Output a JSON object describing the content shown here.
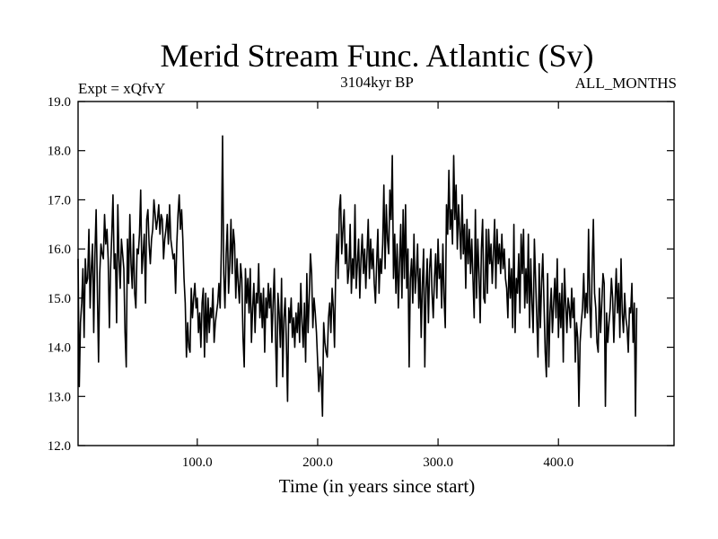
{
  "chart_data": {
    "type": "line",
    "title": "Merid Stream Func. Atlantic (Sv)",
    "subtitle_left": "Expt = xQfvY",
    "subtitle_center": "3104kyr BP",
    "subtitle_right": "ALL_MONTHS",
    "xlabel": "Time (in years since start)",
    "ylabel": "",
    "xlim": [
      1,
      496
    ],
    "ylim": [
      12.0,
      19.0
    ],
    "x_ticks": [
      100,
      200,
      300,
      400
    ],
    "x_tick_labels": [
      "100.0",
      "200.0",
      "300.0",
      "400.0"
    ],
    "y_ticks": [
      12,
      13,
      14,
      15,
      16,
      17,
      18,
      19
    ],
    "y_tick_labels": [
      "12.0",
      "13.0",
      "14.0",
      "15.0",
      "16.0",
      "17.0",
      "18.0",
      "19.0"
    ],
    "grid": false,
    "legend": "none",
    "series": [
      {
        "name": "Merid Stream Func. Atlantic",
        "color": "#000000",
        "start_x": 1,
        "step": 1,
        "values": [
          15.8,
          13.2,
          14.5,
          14.9,
          15.6,
          14.2,
          15.8,
          15.3,
          15.4,
          16.4,
          14.8,
          15.6,
          16.1,
          14.3,
          15.9,
          16.8,
          15.2,
          13.7,
          15.5,
          16.1,
          15.9,
          15.8,
          16.7,
          16.1,
          16.4,
          15.8,
          14.4,
          15.6,
          16.3,
          17.1,
          15.6,
          15.9,
          14.5,
          16.9,
          15.8,
          15.2,
          16.2,
          15.9,
          15.6,
          14.3,
          13.6,
          16.2,
          15.3,
          16.7,
          15.7,
          15.2,
          16.3,
          15.1,
          14.8,
          16.0,
          15.9,
          16.3,
          17.2,
          15.5,
          15.9,
          16.3,
          14.9,
          16.6,
          16.8,
          16.1,
          15.7,
          16.2,
          16.4,
          17.0,
          16.7,
          16.4,
          16.6,
          16.9,
          16.3,
          16.7,
          16.6,
          15.8,
          16.2,
          16.4,
          16.7,
          16.1,
          16.9,
          16.2,
          16.0,
          15.8,
          15.9,
          15.1,
          16.1,
          16.7,
          17.1,
          16.4,
          16.8,
          16.2,
          15.4,
          14.9,
          13.8,
          14.5,
          14.0,
          13.9,
          15.2,
          14.6,
          15.0,
          15.3,
          14.8,
          15.0,
          14.3,
          14.7,
          14.0,
          14.9,
          15.2,
          13.8,
          15.1,
          14.1,
          15.0,
          14.3,
          14.8,
          14.6,
          15.2,
          14.1,
          14.5,
          14.7,
          14.9,
          15.3,
          14.8,
          16.0,
          18.3,
          15.5,
          14.8,
          15.9,
          16.5,
          15.1,
          15.7,
          16.6,
          15.5,
          16.4,
          16.1,
          15.0,
          15.8,
          15.3,
          14.9,
          15.7,
          15.4,
          14.2,
          13.6,
          15.6,
          14.9,
          15.4,
          14.7,
          15.6,
          14.1,
          14.8,
          15.3,
          14.3,
          15.1,
          14.9,
          15.7,
          14.6,
          15.1,
          14.4,
          15.2,
          13.9,
          15.0,
          14.6,
          15.3,
          14.8,
          15.2,
          14.1,
          14.9,
          15.6,
          14.2,
          13.2,
          15.1,
          14.7,
          14.0,
          15.4,
          13.4,
          14.6,
          15.0,
          14.1,
          12.9,
          14.8,
          14.5,
          15.0,
          14.2,
          14.6,
          14.0,
          14.7,
          14.3,
          14.9,
          14.1,
          15.3,
          14.5,
          14.0,
          14.9,
          13.7,
          15.5,
          14.3,
          15.0,
          15.9,
          15.5,
          14.4,
          15.0,
          14.7,
          14.3,
          13.7,
          13.1,
          13.6,
          13.4,
          12.6,
          14.5,
          14.1,
          13.9,
          13.8,
          14.6,
          14.9,
          14.3,
          15.2,
          14.8,
          14.0,
          15.6,
          16.3,
          15.4,
          16.8,
          17.1,
          15.9,
          16.4,
          16.8,
          15.7,
          16.1,
          15.3,
          15.6,
          16.5,
          15.1,
          15.8,
          15.4,
          16.9,
          15.2,
          15.7,
          16.2,
          15.0,
          15.8,
          16.3,
          15.5,
          16.0,
          15.2,
          15.9,
          16.6,
          15.4,
          16.2,
          15.6,
          16.0,
          15.3,
          14.9,
          15.7,
          16.4,
          15.1,
          15.8,
          15.5,
          16.1,
          17.3,
          15.6,
          16.9,
          16.2,
          15.9,
          17.2,
          16.6,
          17.9,
          15.4,
          16.3,
          15.1,
          16.1,
          14.8,
          15.7,
          16.5,
          15.0,
          16.8,
          15.4,
          16.9,
          15.2,
          16.0,
          13.6,
          15.4,
          15.8,
          14.9,
          16.3,
          15.1,
          15.5,
          16.1,
          14.8,
          15.6,
          14.2,
          15.3,
          16.0,
          13.6,
          15.2,
          15.8,
          14.5,
          15.6,
          16.0,
          15.1,
          14.6,
          15.4,
          15.9,
          15.0,
          16.2,
          15.4,
          15.7,
          14.8,
          16.1,
          15.0,
          14.4,
          16.9,
          16.3,
          17.6,
          16.4,
          16.8,
          16.1,
          17.9,
          16.6,
          17.3,
          16.0,
          16.9,
          16.4,
          15.8,
          17.1,
          15.9,
          16.5,
          15.2,
          16.6,
          15.7,
          16.4,
          15.5,
          16.2,
          15.4,
          14.6,
          16.8,
          15.0,
          16.2,
          15.5,
          14.5,
          16.0,
          16.6,
          15.0,
          14.9,
          16.4,
          15.1,
          16.4,
          15.7,
          16.1,
          15.3,
          15.9,
          16.6,
          15.2,
          16.4,
          15.7,
          16.1,
          15.5,
          16.3,
          15.6,
          16.0,
          15.4,
          15.2,
          14.6,
          15.8,
          15.0,
          15.6,
          14.4,
          16.5,
          14.3,
          15.4,
          15.1,
          15.9,
          14.7,
          16.3,
          15.5,
          16.4,
          14.8,
          15.6,
          14.9,
          16.3,
          14.4,
          15.8,
          14.9,
          14.3,
          16.2,
          15.4,
          14.6,
          13.8,
          15.7,
          14.4,
          15.3,
          15.9,
          14.9,
          13.9,
          13.4,
          15.5,
          13.6,
          14.7,
          15.2,
          14.3,
          14.9,
          15.4,
          14.6,
          15.8,
          14.2,
          15.1,
          14.4,
          15.3,
          13.7,
          15.6,
          14.9,
          14.3,
          15.0,
          14.8,
          14.4,
          15.2,
          14.6,
          15.0,
          13.7,
          14.5,
          14.2,
          12.8,
          14.1,
          14.5,
          14.8,
          15.5,
          14.6,
          15.1,
          14.7,
          16.4,
          14.9,
          14.2,
          15.6,
          16.6,
          15.1,
          14.8,
          14.1,
          13.9,
          15.2,
          14.3,
          14.9,
          15.5,
          15.3,
          12.8,
          14.7,
          14.1,
          14.5,
          14.8,
          15.4,
          15.0,
          14.1,
          14.9,
          15.6,
          14.7,
          15.3,
          14.2,
          15.8,
          14.7,
          14.3,
          15.1,
          14.6,
          14.4,
          13.9,
          14.8,
          14.7,
          15.3,
          14.1,
          14.9,
          12.6,
          14.8
        ]
      }
    ]
  }
}
